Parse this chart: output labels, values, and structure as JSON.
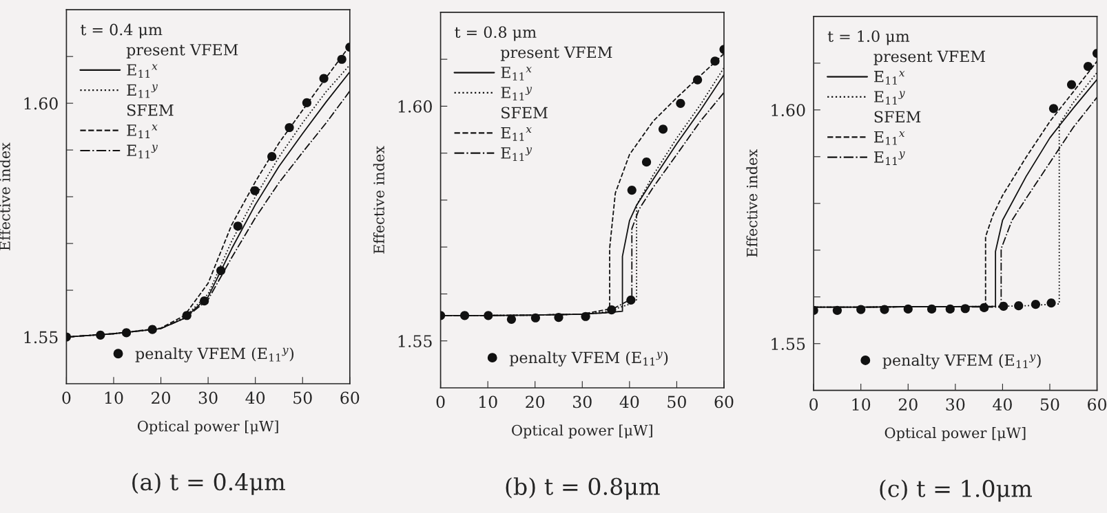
{
  "chart_data": [
    {
      "type": "line",
      "title": "(a) t = 0.4μm",
      "xlabel": "Optical power [μW]",
      "ylabel": "Effective index",
      "legend_title": "t = 0.4 μm",
      "annotations": [
        "present VFEM",
        "SFEM"
      ],
      "legend": "left",
      "xlim": [
        0,
        60
      ],
      "ylim": [
        1.54,
        1.62
      ],
      "xticks": [
        0,
        10,
        20,
        30,
        40,
        50,
        60
      ],
      "yticks": [
        {
          "value": 1.55,
          "label": "1.55"
        },
        {
          "value": 1.56,
          "label": null
        },
        {
          "value": 1.57,
          "label": null
        },
        {
          "value": 1.58,
          "label": null
        },
        {
          "value": 1.59,
          "label": null
        },
        {
          "value": 1.6,
          "label": "1.60"
        },
        {
          "value": 1.61,
          "label": null
        }
      ],
      "series": [
        {
          "name": "E$_{11}$$^{x}$",
          "color": "#111111",
          "line_style": "solid",
          "x": [
            0,
            10,
            20,
            25,
            30,
            35,
            40,
            45,
            50,
            55,
            60
          ],
          "values": [
            1.55,
            1.5507,
            1.5518,
            1.554,
            1.5586,
            1.5689,
            1.5783,
            1.5865,
            1.5935,
            1.6003,
            1.6067
          ]
        },
        {
          "name": "E$_{11}$$^{y}$",
          "color": "#111111",
          "line_style": "dotted",
          "x": [
            0,
            10,
            20,
            25,
            30,
            35,
            40,
            45,
            50,
            55,
            60
          ],
          "values": [
            1.55,
            1.5507,
            1.5518,
            1.5542,
            1.5592,
            1.5705,
            1.58,
            1.5885,
            1.5958,
            1.6025,
            1.6082
          ]
        },
        {
          "name": "E$_{11}$$^{x}$",
          "color": "#111111",
          "line_style": "dashed",
          "x": [
            0,
            10,
            20,
            25,
            30,
            35,
            40,
            45,
            50,
            55,
            60
          ],
          "values": [
            1.55,
            1.5507,
            1.5519,
            1.5546,
            1.5615,
            1.574,
            1.5832,
            1.5915,
            1.5985,
            1.6055,
            1.6123
          ]
        },
        {
          "name": "E$_{11}$$^{y}$",
          "color": "#111111",
          "line_style": "dashdot",
          "x": [
            0,
            10,
            20,
            25,
            30,
            35,
            40,
            45,
            50,
            55,
            60
          ],
          "values": [
            1.55,
            1.5507,
            1.5518,
            1.554,
            1.558,
            1.567,
            1.5755,
            1.583,
            1.5895,
            1.5958,
            1.6026
          ]
        },
        {
          "name": "penalty VFEM (E$_{11}$$^{y}$)",
          "type": "scatter",
          "marker": "circle",
          "color": "#111111",
          "x": [
            0,
            7.2,
            12.7,
            18.2,
            25.5,
            29.2,
            32.7,
            36.3,
            39.9,
            43.5,
            47.2,
            50.9,
            54.5,
            58.3,
            60
          ],
          "values": [
            1.55,
            1.5504,
            1.5509,
            1.5516,
            1.5546,
            1.5577,
            1.5642,
            1.5737,
            1.5813,
            1.5886,
            1.5948,
            1.6001,
            1.6053,
            1.6094,
            1.612
          ]
        }
      ]
    },
    {
      "type": "line",
      "title": "(b) t = 0.8μm",
      "xlabel": "Optical power [μW]",
      "ylabel": "Effective index",
      "legend_title": "t = 0.8 μm",
      "annotations": [
        "present VFEM",
        "SFEM"
      ],
      "legend": "left",
      "xlim": [
        0,
        60
      ],
      "ylim": [
        1.54,
        1.62
      ],
      "xticks": [
        0,
        10,
        20,
        30,
        40,
        50,
        60
      ],
      "yticks": [
        {
          "value": 1.55,
          "label": "1.55"
        },
        {
          "value": 1.56,
          "label": null
        },
        {
          "value": 1.57,
          "label": null
        },
        {
          "value": 1.58,
          "label": null
        },
        {
          "value": 1.59,
          "label": null
        },
        {
          "value": 1.6,
          "label": "1.60"
        },
        {
          "value": 1.61,
          "label": null
        }
      ],
      "series": [
        {
          "name": "E$_{11}$$^{x}$",
          "color": "#111111",
          "line_style": "solid",
          "x": [
            0,
            10,
            20,
            30,
            35,
            38.5,
            38.5,
            40,
            41.5,
            45,
            50,
            55,
            60
          ],
          "values": [
            1.5554,
            1.5554,
            1.5555,
            1.5557,
            1.556,
            1.5563,
            1.568,
            1.5756,
            1.5789,
            1.5844,
            1.592,
            1.5991,
            1.6067
          ]
        },
        {
          "name": "E$_{11}$$^{y}$",
          "color": "#111111",
          "line_style": "dotted",
          "x": [
            0,
            10,
            20,
            30,
            35,
            40,
            41.5,
            41.5,
            45,
            50,
            55,
            60
          ],
          "values": [
            1.5554,
            1.5554,
            1.5555,
            1.5557,
            1.5562,
            1.5578,
            1.5588,
            1.5789,
            1.5853,
            1.5932,
            1.6003,
            1.6082
          ]
        },
        {
          "name": "E$_{11}$$^{x}$",
          "color": "#111111",
          "line_style": "dashed",
          "x": [
            0,
            10,
            20,
            30,
            35.8,
            35.8,
            37,
            40,
            45,
            50,
            55,
            60
          ],
          "values": [
            1.5554,
            1.5554,
            1.5555,
            1.5557,
            1.5568,
            1.5698,
            1.5815,
            1.5897,
            1.5968,
            1.6018,
            1.6065,
            1.6112
          ]
        },
        {
          "name": "E$_{11}$$^{y}$",
          "color": "#111111",
          "line_style": "dashdot",
          "x": [
            0,
            10,
            20,
            30,
            35,
            40.5,
            40.5,
            42,
            45,
            50,
            55,
            60
          ],
          "values": [
            1.5554,
            1.5554,
            1.5555,
            1.5557,
            1.556,
            1.559,
            1.5739,
            1.578,
            1.5827,
            1.5897,
            1.5968,
            1.6029
          ]
        },
        {
          "name": "penalty VFEM (E$_{11}$$^{y}$)",
          "type": "scatter",
          "marker": "circle",
          "color": "#111111",
          "x": [
            0,
            5.1,
            10.1,
            15,
            20.1,
            25,
            30.7,
            36.2,
            40.3,
            40.5,
            43.6,
            47.1,
            50.8,
            54.4,
            58.1,
            60
          ],
          "values": [
            1.5554,
            1.5554,
            1.5554,
            1.5546,
            1.5549,
            1.555,
            1.5552,
            1.5566,
            1.5587,
            1.5821,
            1.5881,
            1.5951,
            1.6006,
            1.6056,
            1.6096,
            1.6121
          ]
        }
      ]
    },
    {
      "type": "line",
      "title": "(c) t = 1.0μm",
      "xlabel": "Optical power [μW]",
      "ylabel": "Effective index",
      "legend_title": "t = 1.0 μm",
      "annotations": [
        "present VFEM",
        "SFEM"
      ],
      "legend": "left",
      "xlim": [
        0,
        60
      ],
      "ylim": [
        1.54,
        1.62
      ],
      "xticks": [
        0,
        10,
        20,
        30,
        40,
        50,
        60
      ],
      "yticks": [
        {
          "value": 1.55,
          "label": "1.55"
        },
        {
          "value": 1.56,
          "label": null
        },
        {
          "value": 1.57,
          "label": null
        },
        {
          "value": 1.58,
          "label": null
        },
        {
          "value": 1.59,
          "label": null
        },
        {
          "value": 1.6,
          "label": "1.60"
        },
        {
          "value": 1.61,
          "label": null
        }
      ],
      "series": [
        {
          "name": "E$_{11}$$^{x}$",
          "color": "#111111",
          "line_style": "solid",
          "x": [
            0,
            10,
            20,
            30,
            38.5,
            38.5,
            40,
            45,
            50,
            52,
            55,
            60
          ],
          "values": [
            1.5578,
            1.5578,
            1.5579,
            1.5579,
            1.558,
            1.5697,
            1.5764,
            1.5858,
            1.594,
            1.5966,
            1.6004,
            1.6065
          ]
        },
        {
          "name": "E$_{11}$$^{y}$",
          "color": "#111111",
          "line_style": "dotted",
          "x": [
            0,
            10,
            20,
            30,
            40,
            45,
            50,
            52,
            52,
            55,
            60
          ],
          "values": [
            1.5578,
            1.5578,
            1.5579,
            1.5579,
            1.558,
            1.5581,
            1.5584,
            1.5585,
            1.5969,
            1.6016,
            1.608
          ]
        },
        {
          "name": "E$_{11}$$^{x}$",
          "color": "#111111",
          "line_style": "dashed",
          "x": [
            0,
            10,
            20,
            30,
            36.4,
            36.4,
            38,
            40,
            45,
            50,
            55,
            60
          ],
          "values": [
            1.5578,
            1.5578,
            1.5579,
            1.5579,
            1.5579,
            1.5729,
            1.5776,
            1.5817,
            1.5899,
            1.5975,
            1.6039,
            1.6104
          ]
        },
        {
          "name": "E$_{11}$$^{y}$",
          "color": "#111111",
          "line_style": "dashdot",
          "x": [
            0,
            10,
            20,
            30,
            39.7,
            39.7,
            42,
            45,
            50,
            55,
            60
          ],
          "values": [
            1.5578,
            1.5578,
            1.5579,
            1.5579,
            1.5578,
            1.5703,
            1.5764,
            1.5811,
            1.5887,
            1.5963,
            1.6027
          ]
        },
        {
          "name": "penalty VFEM (E$_{11}$$^{y}$)",
          "type": "scatter",
          "marker": "circle",
          "color": "#111111",
          "x": [
            0,
            5,
            10,
            15,
            20,
            25,
            28.9,
            32.1,
            36.1,
            40.2,
            43.4,
            47,
            50.3,
            50.8,
            54.6,
            58.1,
            60
          ],
          "values": [
            1.5571,
            1.5571,
            1.5573,
            1.5573,
            1.5574,
            1.5574,
            1.5574,
            1.5575,
            1.5577,
            1.558,
            1.5581,
            1.5584,
            1.5587,
            1.6003,
            1.6054,
            1.6093,
            1.6121
          ]
        }
      ]
    }
  ]
}
